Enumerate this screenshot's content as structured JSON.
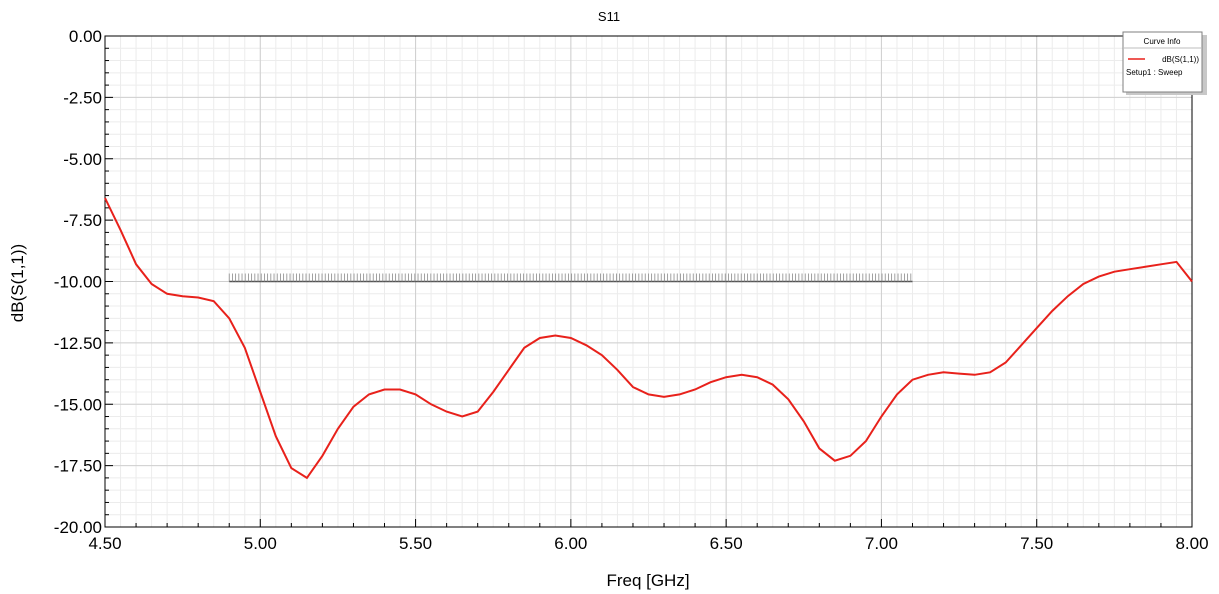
{
  "chart_data": {
    "type": "line",
    "title": "S11",
    "xlabel": "Freq [GHz]",
    "ylabel": "dB(S(1,1))",
    "xlim": [
      4.5,
      8.0
    ],
    "ylim": [
      -20.0,
      0.0
    ],
    "x_ticks": [
      4.5,
      5.0,
      5.5,
      6.0,
      6.5,
      7.0,
      7.5,
      8.0
    ],
    "x_tick_labels": [
      "4.50",
      "5.00",
      "5.50",
      "6.00",
      "6.50",
      "7.00",
      "7.50",
      "8.00"
    ],
    "y_ticks": [
      0,
      -2.5,
      -5,
      -7.5,
      -10,
      -12.5,
      -15,
      -17.5,
      -20
    ],
    "y_tick_labels": [
      "0.00",
      "-2.50",
      "-5.00",
      "-7.50",
      "-10.00",
      "-12.50",
      "-15.00",
      "-17.50",
      "-20.00"
    ],
    "grid": true,
    "legend": {
      "title": "Curve Info",
      "placement": "top-right",
      "entries": [
        {
          "label": "dB(S(1,1))",
          "sublabel": "Setup1 : Sweep",
          "color": "#e8211b"
        }
      ]
    },
    "series": [
      {
        "name": "dB(S(1,1))",
        "color": "#e8211b",
        "x": [
          4.5,
          4.55,
          4.6,
          4.65,
          4.7,
          4.75,
          4.8,
          4.85,
          4.9,
          4.95,
          5.0,
          5.05,
          5.1,
          5.15,
          5.2,
          5.25,
          5.3,
          5.35,
          5.4,
          5.45,
          5.5,
          5.55,
          5.6,
          5.65,
          5.7,
          5.75,
          5.8,
          5.85,
          5.9,
          5.95,
          6.0,
          6.05,
          6.1,
          6.15,
          6.2,
          6.25,
          6.3,
          6.35,
          6.4,
          6.45,
          6.5,
          6.55,
          6.6,
          6.65,
          6.7,
          6.75,
          6.8,
          6.85,
          6.9,
          6.95,
          7.0,
          7.05,
          7.1,
          7.15,
          7.2,
          7.25,
          7.3,
          7.35,
          7.4,
          7.45,
          7.5,
          7.55,
          7.6,
          7.65,
          7.7,
          7.75,
          7.8,
          7.85,
          7.9,
          7.95,
          8.0
        ],
        "y": [
          -6.6,
          -7.9,
          -9.3,
          -10.1,
          -10.5,
          -10.6,
          -10.65,
          -10.8,
          -11.5,
          -12.7,
          -14.5,
          -16.3,
          -17.6,
          -18.0,
          -17.1,
          -16.0,
          -15.1,
          -14.6,
          -14.4,
          -14.4,
          -14.6,
          -15.0,
          -15.3,
          -15.5,
          -15.3,
          -14.5,
          -13.6,
          -12.7,
          -12.3,
          -12.2,
          -12.3,
          -12.6,
          -13.0,
          -13.6,
          -14.3,
          -14.6,
          -14.7,
          -14.6,
          -14.4,
          -14.1,
          -13.9,
          -13.8,
          -13.9,
          -14.2,
          -14.8,
          -15.7,
          -16.8,
          -17.3,
          -17.1,
          -16.5,
          -15.5,
          -14.6,
          -14.0,
          -13.8,
          -13.7,
          -13.75,
          -13.8,
          -13.7,
          -13.3,
          -12.6,
          -11.9,
          -11.2,
          -10.6,
          -10.1,
          -9.8,
          -9.6,
          -9.5,
          -9.4,
          -9.3,
          -9.2,
          -10.0
        ],
        "x_points_note": ""
      }
    ],
    "annotations": [
      {
        "type": "spec_line",
        "x_start": 4.9,
        "x_end": 7.1,
        "y": -10.0,
        "color": "#555555"
      }
    ]
  }
}
